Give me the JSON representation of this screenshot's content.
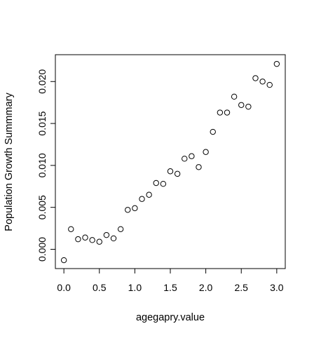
{
  "chart_data": {
    "type": "scatter",
    "title": "",
    "xlabel": "agegapry.value",
    "ylabel": "Population Growth Summmary",
    "xlim": [
      -0.12,
      3.12
    ],
    "ylim": [
      -0.0023,
      0.0232
    ],
    "xticks": [
      0,
      0.5,
      1,
      1.5,
      2,
      2.5,
      3
    ],
    "xtick_labels": [
      "0.0",
      "0.5",
      "1.0",
      "1.5",
      "2.0",
      "2.5",
      "3.0"
    ],
    "yticks": [
      0,
      0.005,
      0.01,
      0.015,
      0.02
    ],
    "ytick_labels": [
      "0.000",
      "0.005",
      "0.010",
      "0.015",
      "0.020"
    ],
    "grid": false,
    "marker": "open-circle",
    "x": [
      0.0,
      0.1,
      0.2,
      0.3,
      0.4,
      0.5,
      0.6,
      0.7,
      0.8,
      0.9,
      1.0,
      1.1,
      1.2,
      1.3,
      1.4,
      1.5,
      1.6,
      1.7,
      1.8,
      1.9,
      2.0,
      2.1,
      2.2,
      2.3,
      2.4,
      2.5,
      2.6,
      2.7,
      2.8,
      2.9,
      3.0
    ],
    "y": [
      -0.0013,
      0.0024,
      0.0012,
      0.0014,
      0.0011,
      0.0009,
      0.0017,
      0.0013,
      0.0024,
      0.0047,
      0.0049,
      0.006,
      0.0065,
      0.0079,
      0.0078,
      0.0093,
      0.009,
      0.0108,
      0.0111,
      0.0098,
      0.0116,
      0.014,
      0.0163,
      0.0163,
      0.0182,
      0.0172,
      0.017,
      0.0204,
      0.02,
      0.0196,
      0.0221
    ]
  }
}
